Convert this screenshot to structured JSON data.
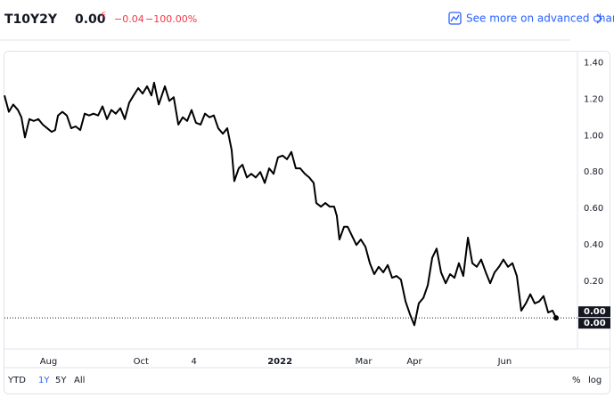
{
  "header": {
    "symbol": "T10Y2Y",
    "price": "0.00",
    "price_flag": "E",
    "change": "−0.04",
    "change_percent": "−100.00%",
    "link": "See more on advanced chart"
  },
  "chart_data": {
    "type": "line",
    "x": [
      0,
      2.0,
      4.0,
      6.1,
      7.7,
      9.3,
      11.3,
      13.3,
      15.4,
      17.4,
      19.4,
      21.4,
      23.0,
      24.3,
      26.3,
      28.3,
      30.3,
      32.3,
      34.4,
      36.4,
      38.4,
      40.4,
      42.5,
      44.5,
      46.5,
      48.5,
      50.5,
      52.6,
      54.6,
      56.6,
      58.6,
      60.7,
      62.7,
      64.7,
      66.7,
      67.9,
      70.0,
      72.8,
      74.8,
      76.8,
      78.9,
      80.9,
      82.9,
      84.9,
      86.9,
      89.0,
      91.0,
      93.0,
      95.0,
      97.0,
      99.1,
      101.1,
      103.1,
      104.3,
      106.3,
      108.0,
      110.0,
      112.0,
      114.0,
      116.1,
      118.1,
      120.1,
      122.1,
      124.1,
      126.2,
      128.2,
      130.2,
      132.2,
      134.2,
      136.3,
      138.3,
      140.3,
      141.5,
      143.6,
      145.6,
      147.6,
      149.6,
      150.8,
      152.0,
      154.1,
      155.7,
      157.7,
      159.7,
      161.7,
      163.8,
      165.8,
      167.8,
      169.8,
      171.9,
      173.9,
      175.9,
      177.9,
      179.9,
      182.0,
      184.0,
      186.0,
      188.0,
      190.1,
      192.1,
      194.1,
      196.1,
      198.1,
      200.2,
      202.2,
      204.2,
      206.2,
      208.2,
      210.3,
      212.3,
      214.3,
      216.3,
      218.4,
      220.4,
      222.4,
      224.4,
      226.4,
      228.5,
      230.5,
      232.5,
      234.5,
      236.6,
      238.6,
      240.6,
      242.6,
      244.6,
      246.7,
      248.7,
      250.3
    ],
    "series": [
      {
        "color": "#000000",
        "values": [
          1.22,
          1.13,
          1.17,
          1.14,
          1.1,
          0.99,
          1.09,
          1.08,
          1.09,
          1.06,
          1.04,
          1.02,
          1.03,
          1.11,
          1.13,
          1.11,
          1.04,
          1.05,
          1.03,
          1.12,
          1.11,
          1.12,
          1.11,
          1.16,
          1.09,
          1.14,
          1.12,
          1.15,
          1.09,
          1.18,
          1.22,
          1.26,
          1.23,
          1.27,
          1.22,
          1.29,
          1.17,
          1.27,
          1.19,
          1.21,
          1.06,
          1.1,
          1.08,
          1.14,
          1.07,
          1.06,
          1.12,
          1.1,
          1.11,
          1.04,
          1.01,
          1.04,
          0.92,
          0.75,
          0.82,
          0.84,
          0.77,
          0.79,
          0.77,
          0.8,
          0.74,
          0.82,
          0.79,
          0.88,
          0.89,
          0.87,
          0.91,
          0.82,
          0.82,
          0.79,
          0.77,
          0.74,
          0.63,
          0.61,
          0.63,
          0.61,
          0.61,
          0.56,
          0.43,
          0.5,
          0.5,
          0.45,
          0.4,
          0.43,
          0.39,
          0.3,
          0.24,
          0.28,
          0.25,
          0.29,
          0.22,
          0.23,
          0.21,
          0.09,
          0.02,
          -0.04,
          0.08,
          0.11,
          0.18,
          0.33,
          0.38,
          0.25,
          0.19,
          0.24,
          0.22,
          0.3,
          0.23,
          0.44,
          0.3,
          0.28,
          0.32,
          0.25,
          0.19,
          0.25,
          0.28,
          0.32,
          0.28,
          0.3,
          0.23,
          0.04,
          0.08,
          0.13,
          0.08,
          0.09,
          0.12,
          0.03,
          0.04,
          0.0
        ]
      }
    ],
    "xlim": [
      0,
      260
    ],
    "xticks": [
      {
        "value": 20,
        "label": "Aug"
      },
      {
        "value": 62,
        "label": "Oct"
      },
      {
        "value": 86,
        "label": "4"
      },
      {
        "value": 125,
        "label": "2022"
      },
      {
        "value": 163,
        "label": "Mar"
      },
      {
        "value": 186,
        "label": "Apr"
      },
      {
        "value": 227,
        "label": "Jun"
      }
    ],
    "ylim": [
      -0.17,
      1.46
    ],
    "yticks": [
      {
        "value": 0.2,
        "label": "0.20"
      },
      {
        "value": 0.4,
        "label": "0.40"
      },
      {
        "value": 0.6,
        "label": "0.60"
      },
      {
        "value": 0.8,
        "label": "0.80"
      },
      {
        "value": 1.0,
        "label": "1.00"
      },
      {
        "value": 1.2,
        "label": "1.20"
      },
      {
        "value": 1.4,
        "label": "1.40"
      }
    ],
    "markers": [
      {
        "value": 0,
        "label": "0.00"
      },
      {
        "value": 0,
        "label": "0.00"
      }
    ]
  },
  "footer": {
    "ranges": [
      "YTD",
      "1Y",
      "5Y",
      "All"
    ],
    "active": "1Y",
    "scale_options": [
      "%",
      "log"
    ]
  }
}
